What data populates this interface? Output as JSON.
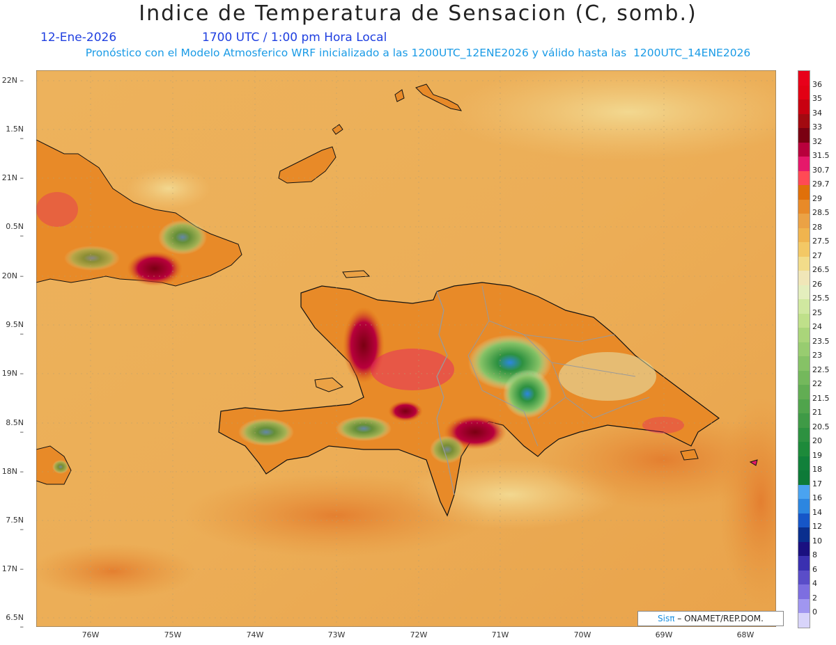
{
  "header": {
    "title": "Indice de Temperatura de Sensacion (C, somb.)",
    "date": "12-Ene-2026",
    "time": "1700 UTC / 1:00 pm Hora Local",
    "model_info": "Pronóstico con el Modelo Atmosferico WRF inicializado a las 1200UTC_12ENE2026 y válido hasta las  1200UTC_14ENE2026"
  },
  "axes": {
    "lat_labels": [
      "22N",
      "1.5N",
      "21N",
      "0.5N",
      "20N",
      "9.5N",
      "19N",
      "8.5N",
      "18N",
      "7.5N",
      "17N",
      "6.5N"
    ],
    "lon_labels": [
      "76W",
      "75W",
      "74W",
      "73W",
      "72W",
      "71W",
      "70W",
      "69W",
      "68W"
    ]
  },
  "colorbar": {
    "labels": [
      "36",
      "35",
      "34",
      "33",
      "32",
      "31.5",
      "30.7",
      "29.7",
      "29",
      "28.5",
      "28",
      "27.5",
      "27",
      "26.5",
      "26",
      "25.5",
      "25",
      "24",
      "23.5",
      "23",
      "22.5",
      "22",
      "21.5",
      "21",
      "20.5",
      "20",
      "19",
      "18",
      "17",
      "16",
      "14",
      "12",
      "10",
      "8",
      "6",
      "4",
      "2",
      "0"
    ],
    "colors": [
      "#e8001a",
      "#e20014",
      "#c80010",
      "#a20a10",
      "#7a0012",
      "#b8003c",
      "#e6186a",
      "#ff4a55",
      "#e0700a",
      "#e88a28",
      "#eba245",
      "#f0b44e",
      "#f3c865",
      "#f2dc8a",
      "#f0e6b8",
      "#e4eebd",
      "#d0e8a0",
      "#bfe08a",
      "#aad57a",
      "#98cc70",
      "#86c266",
      "#74b85c",
      "#62ad53",
      "#50a44c",
      "#3f9a46",
      "#2d9140",
      "#1d8a3a",
      "#11803a",
      "#0d7a38",
      "#4aa3f0",
      "#2c86e0",
      "#1656c8",
      "#0a2f8e",
      "#1a1080",
      "#3a30b0",
      "#5a4dc8",
      "#7d6ee0",
      "#a096f0",
      "#d8d4fa"
    ]
  },
  "credit": {
    "brand": "Sisπ",
    "text": "– ONAMET/REP.DOM."
  },
  "colors": {
    "ocean": "#ecad58",
    "ocean_dark": "#e6933a",
    "ocean_light": "#f0c678",
    "land_hot": "#7a0012",
    "land_green": "#5aab55",
    "land_blue": "#2c86e0",
    "coast": "#111111",
    "border": "#9a9a9a"
  }
}
